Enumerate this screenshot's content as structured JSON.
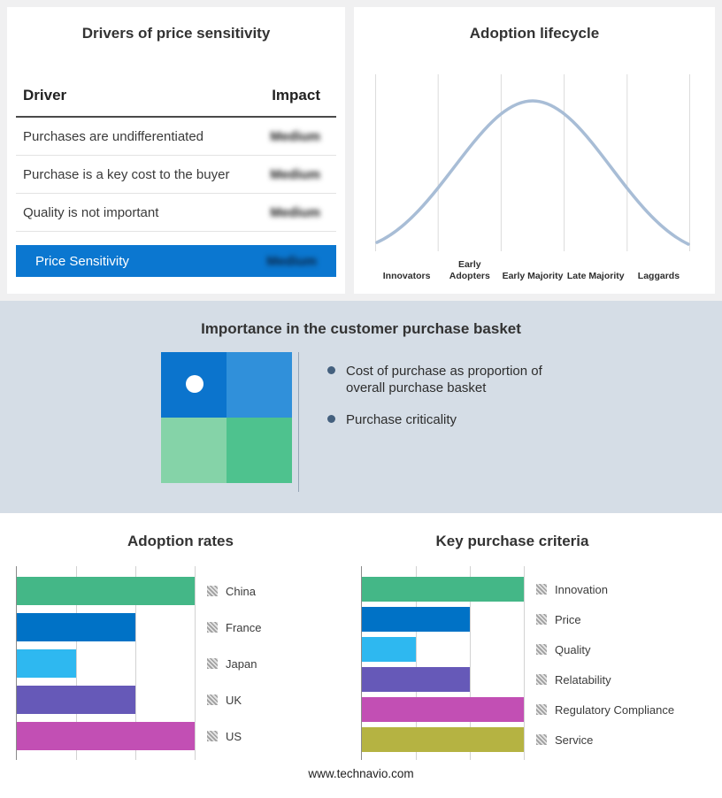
{
  "page": {
    "footer_url": "www.technavio.com",
    "accent_blue": "#0b77d0",
    "top_bg": "#f0f0f1",
    "band_bg": "#d5dde6"
  },
  "drivers_panel": {
    "impact_values_blurred": true
  },
  "basket_panel": {
    "title": "Importance in the customer purchase basket",
    "bullets": [
      "Cost of purchase as proportion of overall purchase basket",
      "Purchase criticality"
    ],
    "quadrant_colors": [
      "#0b74cd",
      "#3090da",
      "#85d3a8",
      "#4ec28e"
    ],
    "dot_quadrant": "top-left"
  },
  "chart_data": [
    {
      "id": "drivers_of_price_sensitivity",
      "type": "table",
      "title": "Drivers of price sensitivity",
      "columns": [
        "Driver",
        "Impact"
      ],
      "rows": [
        [
          "Purchases are undifferentiated",
          "Medium"
        ],
        [
          "Purchase is a key cost to the buyer",
          "Medium"
        ],
        [
          "Quality is not important",
          "Medium"
        ],
        [
          "Price Sensitivity",
          "Medium"
        ]
      ],
      "highlight_last_row": true
    },
    {
      "id": "adoption_lifecycle",
      "type": "line",
      "title": "Adoption lifecycle",
      "shape": "bell-curve",
      "categories": [
        "Innovators",
        "Early Adopters",
        "Early Majority",
        "Late Majority",
        "Laggards"
      ],
      "peak_category": "Early Majority",
      "curve_color": "#a8bdd6",
      "grid": true
    },
    {
      "id": "adoption_rates",
      "type": "bar",
      "orientation": "horizontal",
      "title": "Adoption rates",
      "categories": [
        "China",
        "France",
        "Japan",
        "UK",
        "US"
      ],
      "values": [
        3,
        2,
        1,
        2,
        3
      ],
      "xlim": [
        0,
        3
      ],
      "colors": [
        "#44b787",
        "#0072c6",
        "#2eb8f0",
        "#6659b8",
        "#c24fb4"
      ],
      "legend_position": "right",
      "axis_tick_labels_hidden": true
    },
    {
      "id": "key_purchase_criteria",
      "type": "bar",
      "orientation": "horizontal",
      "title": "Key purchase criteria",
      "categories": [
        "Innovation",
        "Price",
        "Quality",
        "Relatability",
        "Regulatory Compliance",
        "Service"
      ],
      "values": [
        3,
        2,
        1,
        2,
        3,
        3
      ],
      "xlim": [
        0,
        3
      ],
      "colors": [
        "#44b787",
        "#0072c6",
        "#2eb8f0",
        "#6659b8",
        "#c24fb4",
        "#b5b342"
      ],
      "legend_position": "right",
      "axis_tick_labels_hidden": true
    }
  ]
}
